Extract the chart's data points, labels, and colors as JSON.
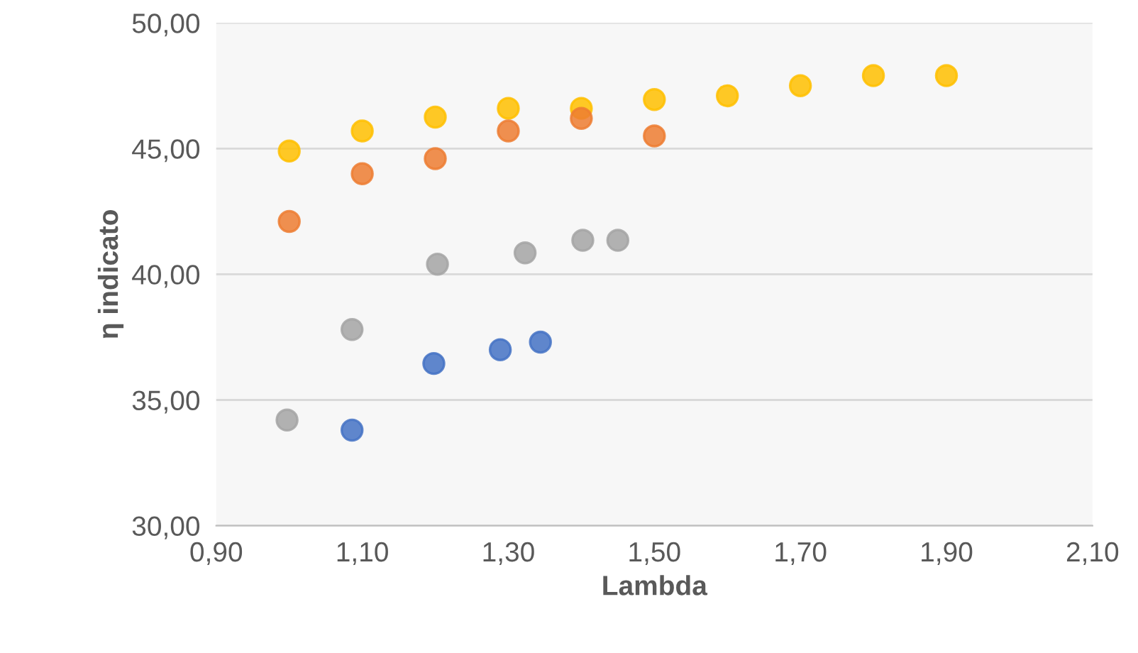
{
  "chart_data": {
    "type": "scatter",
    "xlabel": "Lambda",
    "ylabel": "η indicato",
    "series": [
      {
        "color": "#ffc000",
        "x": [
          1.0,
          1.1,
          1.2,
          1.3,
          1.4,
          1.5,
          1.6,
          1.7,
          1.8,
          1.9
        ],
        "values": [
          44.9,
          45.7,
          46.25,
          46.6,
          46.6,
          46.95,
          47.1,
          47.5,
          47.9,
          47.9
        ]
      },
      {
        "color": "#ed7d31",
        "x": [
          1.0,
          1.1,
          1.2,
          1.3,
          1.4,
          1.5
        ],
        "values": [
          42.1,
          44.0,
          44.6,
          45.7,
          46.2,
          45.5
        ]
      },
      {
        "color": "#a5a5a5",
        "x": [
          0.997,
          1.086,
          1.203,
          1.323,
          1.402,
          1.45
        ],
        "values": [
          34.2,
          37.8,
          40.4,
          40.85,
          41.35,
          41.35
        ]
      },
      {
        "color": "#4472c4",
        "x": [
          1.086,
          1.198,
          1.289,
          1.344
        ],
        "values": [
          33.8,
          36.45,
          37.0,
          37.3
        ]
      }
    ],
    "xlim": [
      0.9,
      2.1
    ],
    "xticks": [
      {
        "value": 0.9,
        "label": "0,90"
      },
      {
        "value": 1.1,
        "label": "1,10"
      },
      {
        "value": 1.3,
        "label": "1,30"
      },
      {
        "value": 1.5,
        "label": "1,50"
      },
      {
        "value": 1.7,
        "label": "1,70"
      },
      {
        "value": 1.9,
        "label": "1,90"
      },
      {
        "value": 2.1,
        "label": "2,10"
      }
    ],
    "ylim": [
      30,
      50
    ],
    "yticks": [
      {
        "value": 30,
        "label": "30,00"
      },
      {
        "value": 35,
        "label": "35,00"
      },
      {
        "value": 40,
        "label": "40,00"
      },
      {
        "value": 45,
        "label": "45,00"
      },
      {
        "value": 50,
        "label": "50,00"
      }
    ],
    "grid": "y",
    "marker": "circle"
  }
}
